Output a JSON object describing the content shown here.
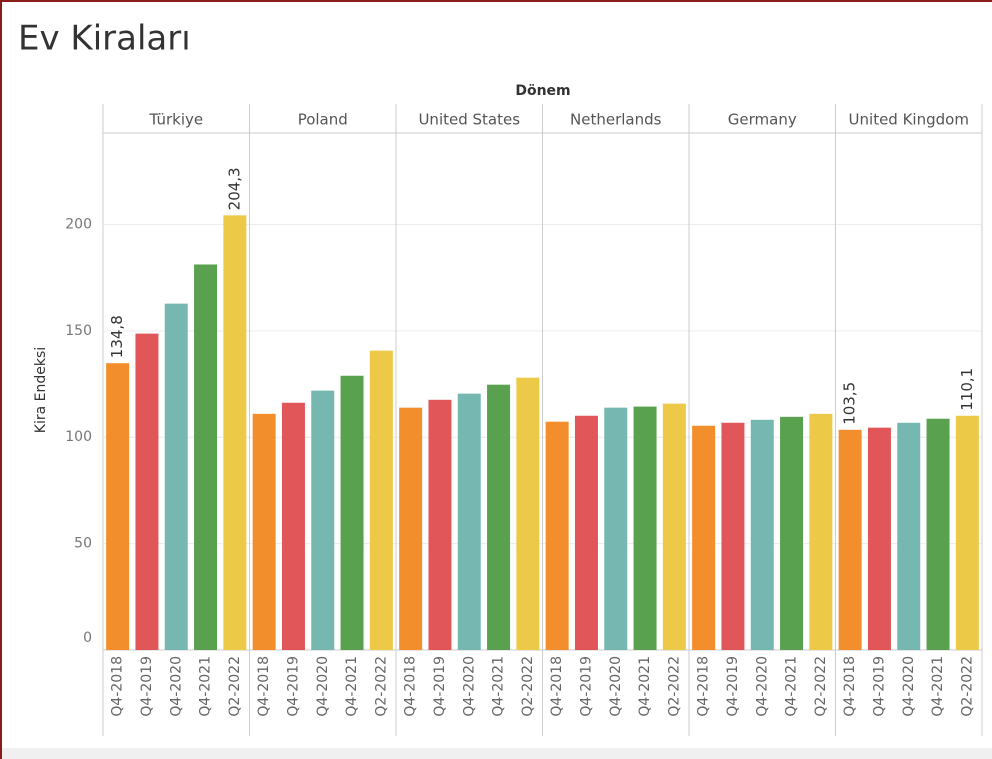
{
  "chart_data": {
    "type": "bar",
    "title": "Ev Kiraları",
    "column_header": "Dönem",
    "y_label": "Kira Endeksi",
    "categories": [
      "Q4-2018",
      "Q4-2019",
      "Q4-2020",
      "Q4-2021",
      "Q2-2022"
    ],
    "colors": [
      "#f28e2b",
      "#e15759",
      "#76b7b2",
      "#59a14f",
      "#edc948"
    ],
    "panels": [
      {
        "name": "Türkiye",
        "values": [
          134.8,
          148.7,
          162.8,
          181.2,
          204.3
        ],
        "value_labels": [
          "134,8",
          null,
          null,
          null,
          "204,3"
        ]
      },
      {
        "name": "Poland",
        "values": [
          111,
          116.2,
          121.9,
          128.9,
          140.7
        ]
      },
      {
        "name": "United States",
        "values": [
          113.9,
          117.6,
          120.5,
          124.7,
          128
        ]
      },
      {
        "name": "Netherlands",
        "values": [
          107.3,
          110.1,
          113.9,
          114.4,
          115.8
        ]
      },
      {
        "name": "Germany",
        "values": [
          105.4,
          106.8,
          108.2,
          109.6,
          111
        ]
      },
      {
        "name": "United Kingdom",
        "values": [
          103.5,
          104.5,
          106.8,
          108.7,
          110.1
        ],
        "value_labels": [
          "103,5",
          null,
          null,
          null,
          "110,1"
        ]
      }
    ],
    "ylim": [
      0,
      243
    ],
    "yticks": [
      0,
      50,
      100,
      150,
      200
    ],
    "grid": true
  }
}
